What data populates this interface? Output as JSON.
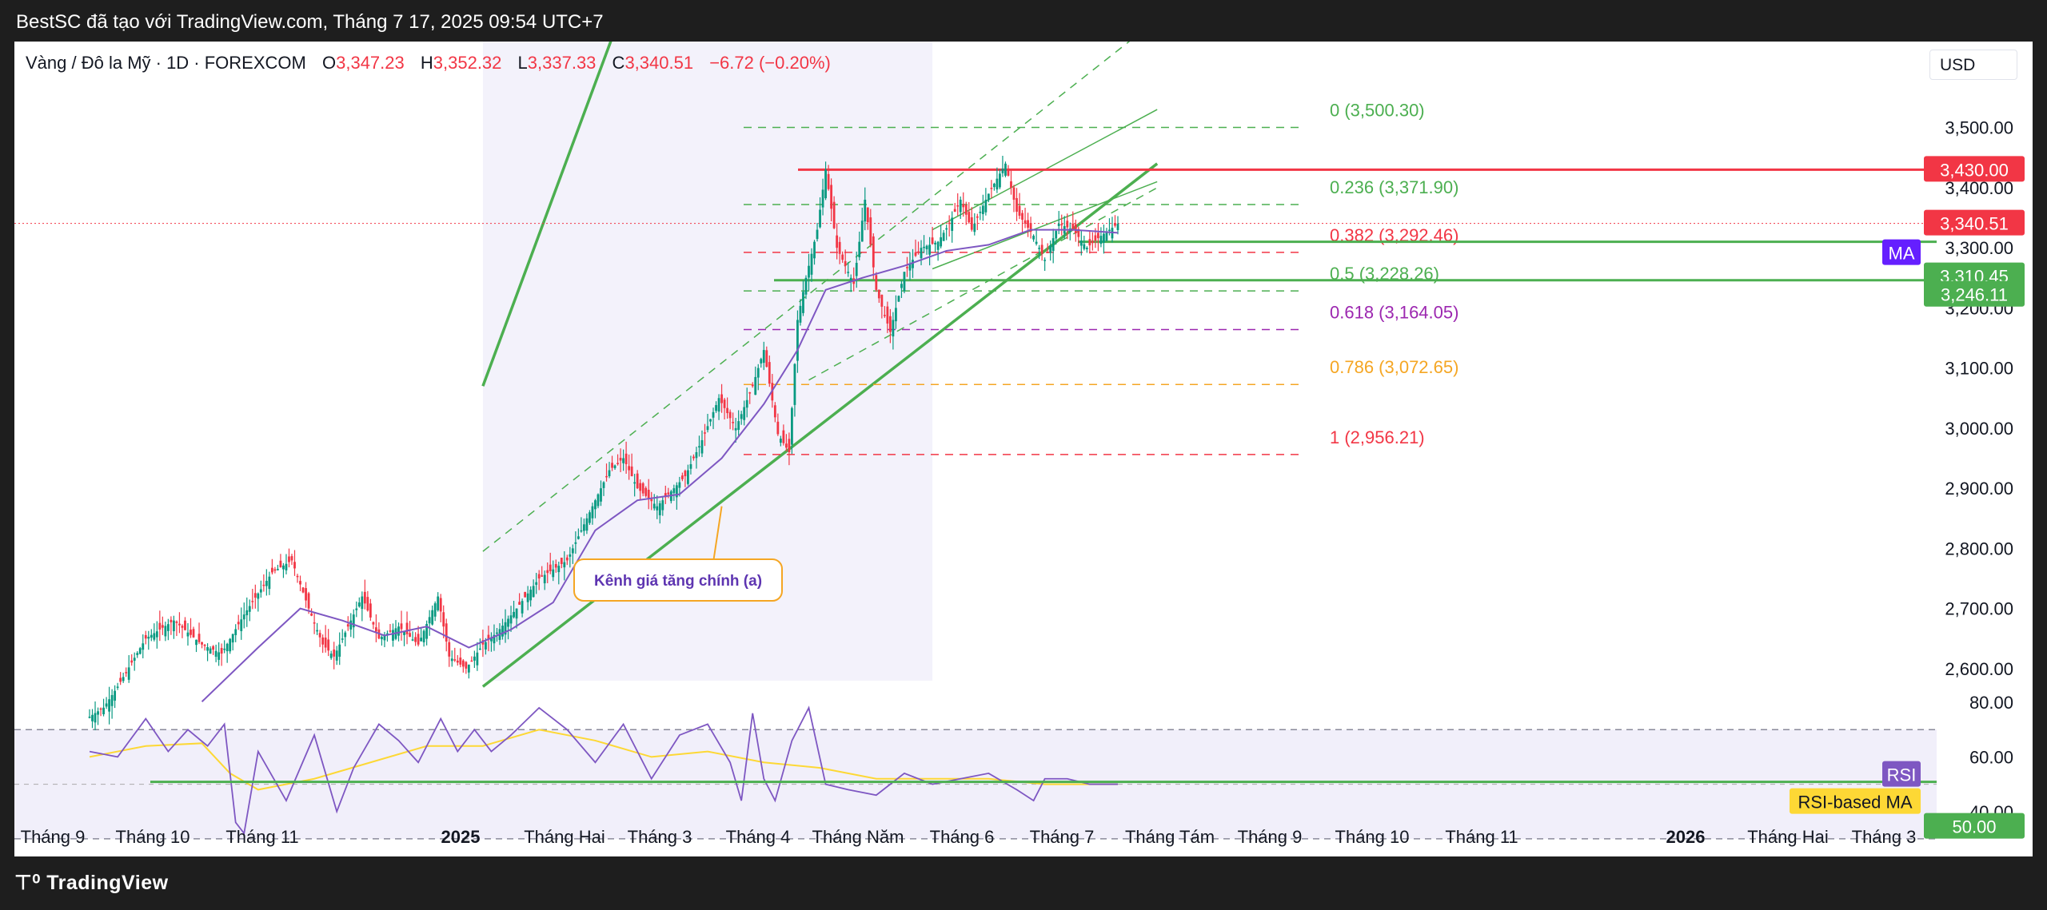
{
  "header": {
    "attribution": "BestSC đã tạo với TradingView.com, Tháng 7 17, 2025 09:54 UTC+7"
  },
  "legend": {
    "symbol": "Vàng / Đô la Mỹ · 1D · FOREXCOM",
    "open_label": "O",
    "open": "3,347.23",
    "high_label": "H",
    "high": "3,352.32",
    "low_label": "L",
    "low": "3,337.33",
    "close_label": "C",
    "close": "3,340.51",
    "change": "−6.72 (−0.20%)"
  },
  "currency": "USD",
  "footer": {
    "logo": "TradingView"
  },
  "colors": {
    "up": "#089981",
    "down": "#f23645",
    "channel": "#4caf50",
    "ma": "#7e57c2",
    "rsi": "#7e57c2",
    "rsi_ma": "#fdd835",
    "resistance": "#f23645",
    "support": "#4caf50",
    "annotation": "#f5a623"
  },
  "chart_data": [
    {
      "type": "candlestick",
      "ylim": [
        2540,
        3570
      ],
      "y_ticks": [
        "2,600.00",
        "2,700.00",
        "2,800.00",
        "2,900.00",
        "3,000.00",
        "3,100.00",
        "3,200.00",
        "3,300.00",
        "3,400.00",
        "3,500.00"
      ],
      "y_tick_values": [
        2600,
        2700,
        2800,
        2900,
        3000,
        3100,
        3200,
        3300,
        3400,
        3500
      ],
      "x_ticks": [
        {
          "label": "Tháng 9",
          "bold": false
        },
        {
          "label": "Tháng 10",
          "bold": false
        },
        {
          "label": "Tháng 11",
          "bold": false
        },
        {
          "label": "2025",
          "bold": true
        },
        {
          "label": "Tháng Hai",
          "bold": false
        },
        {
          "label": "Tháng 3",
          "bold": false
        },
        {
          "label": "Tháng 4",
          "bold": false
        },
        {
          "label": "Tháng Năm",
          "bold": false
        },
        {
          "label": "Tháng 6",
          "bold": false
        },
        {
          "label": "Tháng 7",
          "bold": false
        },
        {
          "label": "Tháng Tám",
          "bold": false
        },
        {
          "label": "Tháng 9",
          "bold": false
        },
        {
          "label": "Tháng 10",
          "bold": false
        },
        {
          "label": "Tháng 11",
          "bold": false
        },
        {
          "label": "2026",
          "bold": true
        },
        {
          "label": "Tháng Hai",
          "bold": false
        },
        {
          "label": "Tháng 3",
          "bold": false
        }
      ],
      "price_path": [
        [
          0,
          2520
        ],
        [
          5,
          2535
        ],
        [
          10,
          2570
        ],
        [
          20,
          2650
        ],
        [
          30,
          2680
        ],
        [
          40,
          2640
        ],
        [
          47,
          2625
        ],
        [
          55,
          2690
        ],
        [
          65,
          2760
        ],
        [
          72,
          2780
        ],
        [
          78,
          2700
        ],
        [
          83,
          2640
        ],
        [
          87,
          2620
        ],
        [
          92,
          2670
        ],
        [
          97,
          2720
        ],
        [
          103,
          2650
        ],
        [
          110,
          2670
        ],
        [
          117,
          2640
        ],
        [
          124,
          2720
        ],
        [
          128,
          2620
        ],
        [
          134,
          2600
        ],
        [
          140,
          2640
        ],
        [
          145,
          2660
        ],
        [
          152,
          2700
        ],
        [
          160,
          2750
        ],
        [
          170,
          2780
        ],
        [
          178,
          2860
        ],
        [
          185,
          2930
        ],
        [
          190,
          2950
        ],
        [
          195,
          2900
        ],
        [
          202,
          2870
        ],
        [
          208,
          2900
        ],
        [
          212,
          2920
        ],
        [
          218,
          2980
        ],
        [
          224,
          3050
        ],
        [
          230,
          3000
        ],
        [
          236,
          3070
        ],
        [
          240,
          3130
        ],
        [
          245,
          2990
        ],
        [
          249,
          2960
        ],
        [
          252,
          3180
        ],
        [
          255,
          3250
        ],
        [
          259,
          3330
        ],
        [
          262,
          3430
        ],
        [
          266,
          3300
        ],
        [
          272,
          3240
        ],
        [
          276,
          3380
        ],
        [
          280,
          3230
        ],
        [
          285,
          3160
        ],
        [
          290,
          3260
        ],
        [
          296,
          3300
        ],
        [
          302,
          3310
        ],
        [
          306,
          3340
        ],
        [
          310,
          3380
        ],
        [
          314,
          3330
        ],
        [
          320,
          3390
        ],
        [
          326,
          3440
        ],
        [
          330,
          3360
        ],
        [
          336,
          3320
        ],
        [
          340,
          3280
        ],
        [
          345,
          3340
        ],
        [
          350,
          3330
        ],
        [
          355,
          3300
        ],
        [
          360,
          3320
        ],
        [
          366,
          3340
        ]
      ],
      "moving_average": {
        "label": "MA",
        "value": "3,310.45",
        "path": [
          [
            40,
            2545
          ],
          [
            60,
            2635
          ],
          [
            75,
            2700
          ],
          [
            90,
            2680
          ],
          [
            105,
            2655
          ],
          [
            120,
            2670
          ],
          [
            135,
            2635
          ],
          [
            150,
            2665
          ],
          [
            165,
            2710
          ],
          [
            180,
            2830
          ],
          [
            195,
            2880
          ],
          [
            210,
            2890
          ],
          [
            225,
            2950
          ],
          [
            240,
            3040
          ],
          [
            252,
            3130
          ],
          [
            262,
            3230
          ],
          [
            275,
            3250
          ],
          [
            290,
            3270
          ],
          [
            305,
            3295
          ],
          [
            320,
            3305
          ],
          [
            335,
            3330
          ],
          [
            350,
            3330
          ],
          [
            366,
            3325
          ]
        ]
      },
      "last_price": "3,340.51",
      "horizontal_levels": [
        {
          "name": "resistance",
          "value": 3430,
          "label": "3,430.00"
        },
        {
          "name": "support",
          "value": 3246.11,
          "label": "3,246.11"
        }
      ],
      "channel": {
        "upper": [
          [
            140,
            3070
          ],
          [
            190,
            3700
          ]
        ],
        "lower": [
          [
            140,
            2570
          ],
          [
            380,
            3440
          ]
        ],
        "mid_lines": [
          [
            [
              140,
              2795
            ],
            [
              380,
              3680
            ]
          ],
          [
            [
              256,
              3080
            ],
            [
              380,
              3400
            ]
          ]
        ]
      },
      "fibonacci": [
        {
          "ratio": "0",
          "price": 3500.3,
          "label": "0 (3,500.30)",
          "color": "#4caf50"
        },
        {
          "ratio": "0.236",
          "price": 3371.9,
          "label": "0.236 (3,371.90)",
          "color": "#4caf50"
        },
        {
          "ratio": "0.382",
          "price": 3292.46,
          "label": "0.382 (3,292.46)",
          "color": "#f23645"
        },
        {
          "ratio": "0.5",
          "price": 3228.26,
          "label": "0.5 (3,228.26)",
          "color": "#4caf50"
        },
        {
          "ratio": "0.618",
          "price": 3164.05,
          "label": "0.618 (3,164.05)",
          "color": "#9c27b0"
        },
        {
          "ratio": "0.786",
          "price": 3072.65,
          "label": "0.786 (3,072.65)",
          "color": "#f5a623"
        },
        {
          "ratio": "1",
          "price": 2956.21,
          "label": "1 (2,956.21)",
          "color": "#f23645"
        }
      ],
      "annotation": {
        "text": "Kênh giá tăng chính (a)",
        "anchor": [
          225,
          2870
        ]
      }
    },
    {
      "type": "line",
      "name": "RSI",
      "ylim": [
        25,
        85
      ],
      "y_ticks": [
        "80.00",
        "60.00",
        "40.00"
      ],
      "y_tick_values": [
        80,
        60,
        40
      ],
      "band": [
        30,
        70
      ],
      "level_label": "50.00",
      "level": 50,
      "rsi_label": "RSI",
      "rsi_ma_label": "RSI-based MA",
      "rsi_path": [
        [
          0,
          62
        ],
        [
          10,
          60
        ],
        [
          20,
          74
        ],
        [
          28,
          62
        ],
        [
          35,
          70
        ],
        [
          42,
          64
        ],
        [
          48,
          72
        ],
        [
          52,
          36
        ],
        [
          55,
          32
        ],
        [
          60,
          62
        ],
        [
          70,
          44
        ],
        [
          80,
          68
        ],
        [
          88,
          40
        ],
        [
          94,
          56
        ],
        [
          103,
          72
        ],
        [
          110,
          66
        ],
        [
          117,
          58
        ],
        [
          125,
          74
        ],
        [
          131,
          62
        ],
        [
          137,
          70
        ],
        [
          143,
          62
        ],
        [
          150,
          68
        ],
        [
          160,
          78
        ],
        [
          170,
          70
        ],
        [
          180,
          58
        ],
        [
          190,
          72
        ],
        [
          200,
          52
        ],
        [
          210,
          68
        ],
        [
          220,
          72
        ],
        [
          228,
          58
        ],
        [
          232,
          44
        ],
        [
          236,
          76
        ],
        [
          240,
          52
        ],
        [
          244,
          44
        ],
        [
          250,
          66
        ],
        [
          256,
          78
        ],
        [
          262,
          50
        ],
        [
          270,
          48
        ],
        [
          280,
          46
        ],
        [
          290,
          54
        ],
        [
          300,
          50
        ],
        [
          310,
          52
        ],
        [
          320,
          54
        ],
        [
          330,
          48
        ],
        [
          336,
          44
        ],
        [
          340,
          52
        ],
        [
          348,
          52
        ],
        [
          356,
          50
        ],
        [
          366,
          50
        ]
      ],
      "rsi_ma_path": [
        [
          0,
          60
        ],
        [
          20,
          64
        ],
        [
          40,
          65
        ],
        [
          50,
          54
        ],
        [
          60,
          48
        ],
        [
          80,
          52
        ],
        [
          100,
          58
        ],
        [
          120,
          64
        ],
        [
          140,
          64
        ],
        [
          160,
          70
        ],
        [
          180,
          66
        ],
        [
          200,
          60
        ],
        [
          220,
          62
        ],
        [
          240,
          58
        ],
        [
          260,
          56
        ],
        [
          280,
          52
        ],
        [
          300,
          52
        ],
        [
          320,
          52
        ],
        [
          340,
          50
        ],
        [
          366,
          50
        ]
      ]
    }
  ]
}
